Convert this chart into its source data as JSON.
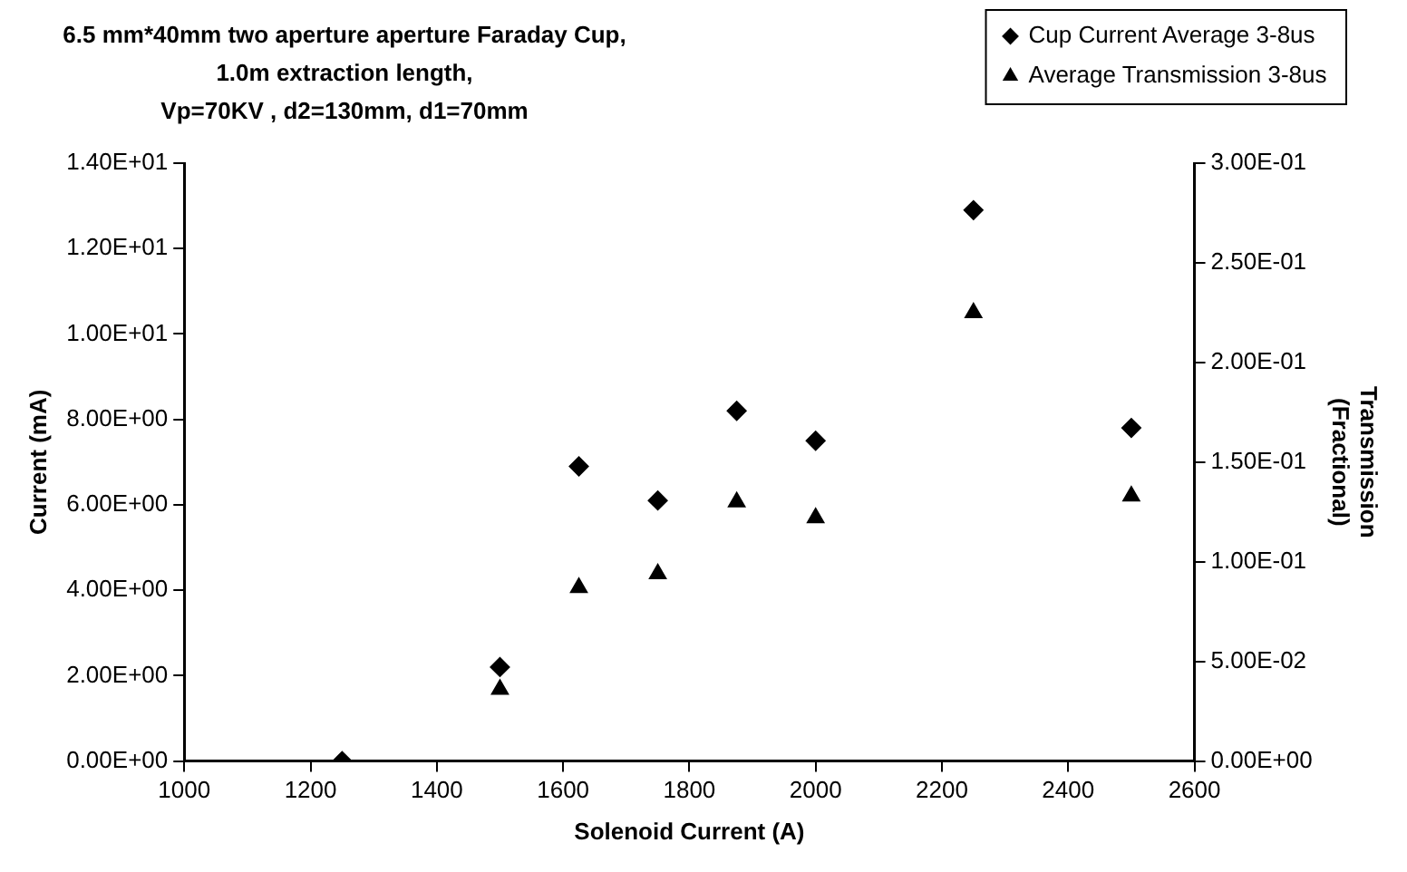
{
  "chart_data": {
    "type": "scatter",
    "title": "6.5 mm*40mm two aperture aperture Faraday Cup,\n1.0m extraction length,\nVp=70KV , d2=130mm, d1=70mm",
    "xlabel": "Solenoid Current (A)",
    "ylabel": "Current (mA)",
    "y2label": "Transmission\n(Fractional)",
    "x": [
      1250,
      1500,
      1625,
      1750,
      1875,
      2000,
      2250,
      2500
    ],
    "series": [
      {
        "name": "Cup Current Average 3-8us",
        "color": "#000000",
        "marker": "diamond",
        "values": [
          0,
          2.2,
          6.9,
          6.1,
          8.2,
          7.5,
          12.9,
          7.8
        ]
      },
      {
        "name": "Average Transmission 3-8us",
        "color": "#000000",
        "marker": "triangle",
        "axis": "y2",
        "values": [
          null,
          0.036,
          0.087,
          0.094,
          0.13,
          0.122,
          0.225,
          0.133
        ]
      }
    ],
    "xlim": [
      1000,
      2600
    ],
    "xticks": [
      1000,
      1200,
      1400,
      1600,
      1800,
      2000,
      2200,
      2400,
      2600
    ],
    "ylim": [
      0,
      14
    ],
    "yticks": [
      {
        "value": 0,
        "label": "0.00E+00"
      },
      {
        "value": 2,
        "label": "2.00E+00"
      },
      {
        "value": 4,
        "label": "4.00E+00"
      },
      {
        "value": 6,
        "label": "6.00E+00"
      },
      {
        "value": 8,
        "label": "8.00E+00"
      },
      {
        "value": 10,
        "label": "1.00E+01"
      },
      {
        "value": 12,
        "label": "1.20E+01"
      },
      {
        "value": 14,
        "label": "1.40E+01"
      }
    ],
    "y2lim": [
      0,
      0.3
    ],
    "y2ticks": [
      {
        "value": 0,
        "label": "0.00E+00"
      },
      {
        "value": 0.05,
        "label": "5.00E-02"
      },
      {
        "value": 0.1,
        "label": "1.00E-01"
      },
      {
        "value": 0.15,
        "label": "1.50E-01"
      },
      {
        "value": 0.2,
        "label": "2.00E-01"
      },
      {
        "value": 0.25,
        "label": "2.50E-01"
      },
      {
        "value": 0.3,
        "label": "3.00E-01"
      }
    ],
    "grid": false,
    "legend": "top right"
  }
}
